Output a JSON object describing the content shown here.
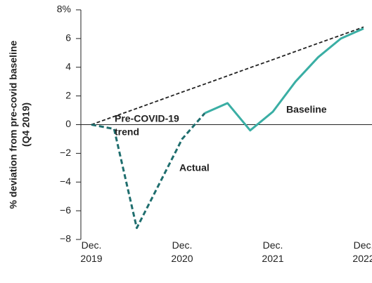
{
  "chart_data": {
    "type": "line",
    "ylabel": [
      "% deviation from pre-covid baseline",
      "(Q4 2019)"
    ],
    "categories": [
      "Dec. 2019",
      null,
      null,
      null,
      "Dec. 2020",
      null,
      null,
      null,
      "Dec. 2021",
      null,
      null,
      null,
      "Dec. 2022"
    ],
    "series": [
      {
        "name": [
          "Pre-COVID-19",
          "trend"
        ],
        "color": "#222222",
        "dash": true,
        "values": [
          0,
          0.57,
          1.13,
          1.7,
          2.27,
          2.83,
          3.4,
          3.97,
          4.53,
          5.1,
          5.67,
          6.23,
          6.8
        ]
      },
      {
        "name": [
          "Actual"
        ],
        "color": "#1f6e6e",
        "dash": true,
        "values": [
          0,
          -0.3,
          -7.2,
          -4.1,
          -1.0,
          0.8,
          null,
          null,
          null,
          null,
          null,
          null,
          null
        ]
      },
      {
        "name": [
          "Baseline"
        ],
        "color": "#3aaea4",
        "dash": false,
        "values": [
          null,
          null,
          null,
          null,
          null,
          0.8,
          1.5,
          -0.4,
          0.9,
          3.0,
          4.7,
          6.0,
          6.7
        ]
      }
    ],
    "ylim": [
      -8,
      8
    ],
    "yticks": [
      {
        "value": -8,
        "label": "−8"
      },
      {
        "value": -6,
        "label": "−6"
      },
      {
        "value": -4,
        "label": "−4"
      },
      {
        "value": -2,
        "label": "−2"
      },
      0,
      2,
      4,
      6,
      {
        "value": 8,
        "label": "8%"
      }
    ]
  }
}
